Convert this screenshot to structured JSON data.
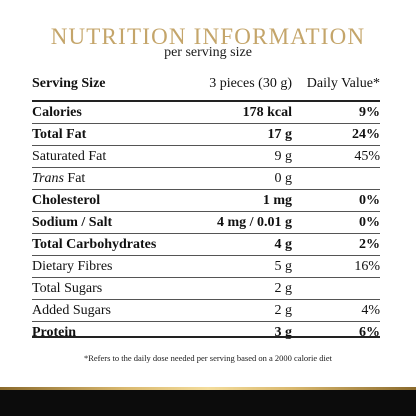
{
  "title": "NUTRITION INFORMATION",
  "subtitle": "per serving size",
  "colors": {
    "title_gold": "#c4a56a",
    "footer_dark": "#0c0c0c",
    "footer_gold": "#d9b86e"
  },
  "header": {
    "label": "Serving Size",
    "amount": "3 pieces (30 g)",
    "dv": "Daily Value*"
  },
  "rows": [
    {
      "name": "Calories",
      "amount": "178 kcal",
      "dv": "9%",
      "bold": true
    },
    {
      "name": "Total Fat",
      "amount": "17 g",
      "dv": "24%",
      "bold": true
    },
    {
      "name": "Saturated Fat",
      "amount": "9 g",
      "dv": "45%",
      "bold": false
    },
    {
      "name_italic": "Trans",
      "name": " Fat",
      "amount": "0 g",
      "dv": "",
      "bold": false
    },
    {
      "name": "Cholesterol",
      "amount": "1 mg",
      "dv": "0%",
      "bold": true
    },
    {
      "name": "Sodium / Salt",
      "amount": "4 mg / 0.01 g",
      "dv": "0%",
      "bold": true
    },
    {
      "name": "Total Carbohydrates",
      "amount": "4 g",
      "dv": "2%",
      "bold": true
    },
    {
      "name": "Dietary Fibres",
      "amount": "5 g",
      "dv": "16%",
      "bold": false
    },
    {
      "name": "Total Sugars",
      "amount": "2 g",
      "dv": "",
      "bold": false
    },
    {
      "name": "Added Sugars",
      "amount": "2 g",
      "dv": "4%",
      "bold": false
    },
    {
      "name": "Protein",
      "amount": "3 g",
      "dv": "6%",
      "bold": true
    }
  ],
  "footnote": "*Refers to the daily dose needed per serving based on a 2000 calorie diet"
}
